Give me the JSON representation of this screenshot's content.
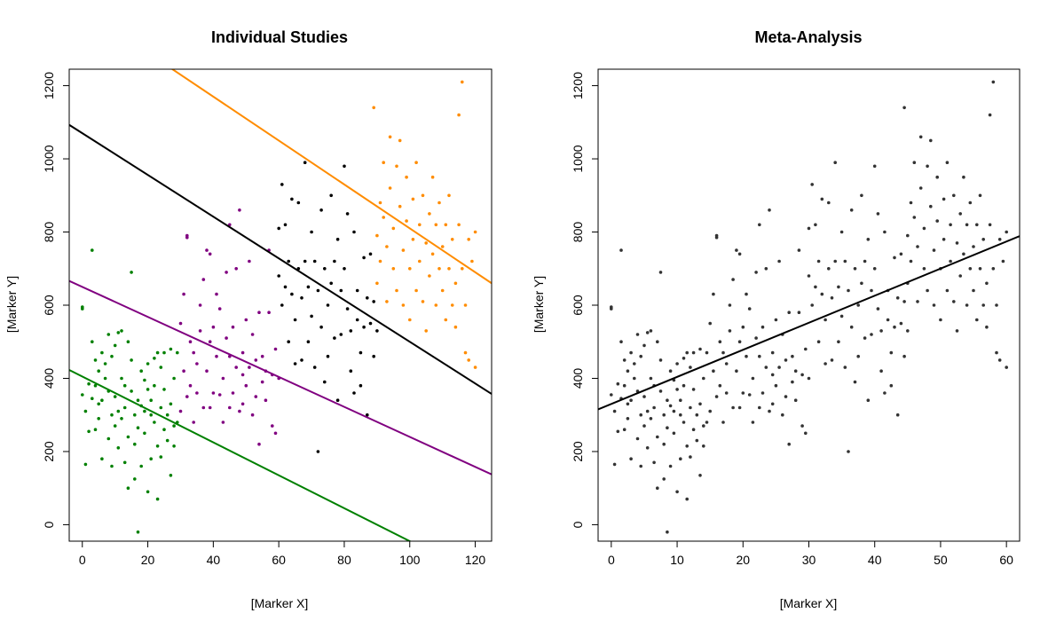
{
  "chart_data": [
    {
      "type": "scatter",
      "title": "Individual Studies",
      "xlabel": "[Marker X]",
      "ylabel": "[Marker Y]",
      "xlim": [
        -4,
        125
      ],
      "ylim": [
        -45,
        1245
      ],
      "xticks": [
        0,
        20,
        40,
        60,
        80,
        100,
        120
      ],
      "yticks": [
        0,
        200,
        400,
        600,
        800,
        1000,
        1200
      ],
      "grid": false,
      "legend": "none",
      "series": [
        {
          "color": "#008000",
          "fit": {
            "intercept": 405,
            "slope": -4.5
          },
          "points": [
            [
              0,
              355
            ],
            [
              0,
              595
            ],
            [
              0,
              590
            ],
            [
              1,
              165
            ],
            [
              1,
              310
            ],
            [
              2,
              255
            ],
            [
              2,
              385
            ],
            [
              3,
              345
            ],
            [
              3,
              750
            ],
            [
              3,
              500
            ],
            [
              4,
              450
            ],
            [
              4,
              260
            ],
            [
              4,
              380
            ],
            [
              5,
              330
            ],
            [
              5,
              290
            ],
            [
              5,
              420
            ],
            [
              6,
              340
            ],
            [
              6,
              180
            ],
            [
              6,
              470
            ],
            [
              7,
              400
            ],
            [
              7,
              440
            ],
            [
              8,
              365
            ],
            [
              8,
              520
            ],
            [
              8,
              235
            ],
            [
              9,
              300
            ],
            [
              9,
              460
            ],
            [
              9,
              160
            ],
            [
              10,
              350
            ],
            [
              10,
              490
            ],
            [
              10,
              270
            ],
            [
              11,
              525
            ],
            [
              11,
              210
            ],
            [
              11,
              310
            ],
            [
              12,
              400
            ],
            [
              12,
              530
            ],
            [
              12,
              290
            ],
            [
              13,
              380
            ],
            [
              13,
              320
            ],
            [
              13,
              170
            ],
            [
              14,
              240
            ],
            [
              14,
              100
            ],
            [
              14,
              500
            ],
            [
              15,
              365
            ],
            [
              15,
              450
            ],
            [
              15,
              690
            ],
            [
              16,
              300
            ],
            [
              16,
              220
            ],
            [
              16,
              125
            ],
            [
              17,
              340
            ],
            [
              17,
              265
            ],
            [
              17,
              -20
            ],
            [
              18,
              325
            ],
            [
              18,
              420
            ],
            [
              18,
              160
            ],
            [
              19,
              250
            ],
            [
              19,
              310
            ],
            [
              19,
              395
            ],
            [
              20,
              370
            ],
            [
              20,
              90
            ],
            [
              20,
              440
            ],
            [
              21,
              300
            ],
            [
              21,
              340
            ],
            [
              21,
              180
            ],
            [
              22,
              380
            ],
            [
              22,
              280
            ],
            [
              22,
              455
            ],
            [
              23,
              215
            ],
            [
              23,
              70
            ],
            [
              23,
              470
            ],
            [
              24,
              320
            ],
            [
              24,
              430
            ],
            [
              24,
              185
            ],
            [
              25,
              260
            ],
            [
              25,
              370
            ],
            [
              25,
              470
            ],
            [
              26,
              300
            ],
            [
              26,
              230
            ],
            [
              27,
              480
            ],
            [
              27,
              135
            ],
            [
              27,
              330
            ],
            [
              28,
              270
            ],
            [
              28,
              400
            ],
            [
              28,
              215
            ],
            [
              29,
              470
            ],
            [
              29,
              280
            ]
          ]
        },
        {
          "color": "#800080",
          "fit": {
            "intercept": 650,
            "slope": -4.1
          },
          "points": [
            [
              30,
              310
            ],
            [
              30,
              550
            ],
            [
              31,
              420
            ],
            [
              31,
              630
            ],
            [
              32,
              790
            ],
            [
              32,
              785
            ],
            [
              32,
              350
            ],
            [
              33,
              500
            ],
            [
              33,
              380
            ],
            [
              34,
              280
            ],
            [
              34,
              470
            ],
            [
              35,
              440
            ],
            [
              35,
              360
            ],
            [
              36,
              600
            ],
            [
              36,
              530
            ],
            [
              37,
              320
            ],
            [
              37,
              670
            ],
            [
              38,
              750
            ],
            [
              38,
              420
            ],
            [
              39,
              500
            ],
            [
              39,
              740
            ],
            [
              39,
              320
            ],
            [
              40,
              540
            ],
            [
              40,
              360
            ],
            [
              41,
              630
            ],
            [
              41,
              460
            ],
            [
              42,
              355
            ],
            [
              42,
              590
            ],
            [
              43,
              400
            ],
            [
              43,
              280
            ],
            [
              44,
              510
            ],
            [
              44,
              690
            ],
            [
              45,
              460
            ],
            [
              45,
              320
            ],
            [
              45,
              820
            ],
            [
              46,
              360
            ],
            [
              46,
              540
            ],
            [
              47,
              430
            ],
            [
              47,
              700
            ],
            [
              48,
              860
            ],
            [
              48,
              310
            ],
            [
              49,
              410
            ],
            [
              49,
              470
            ],
            [
              49,
              330
            ],
            [
              50,
              560
            ],
            [
              50,
              380
            ],
            [
              51,
              720
            ],
            [
              51,
              430
            ],
            [
              52,
              300
            ],
            [
              52,
              520
            ],
            [
              53,
              350
            ],
            [
              53,
              450
            ],
            [
              54,
              580
            ],
            [
              54,
              220
            ],
            [
              55,
              390
            ],
            [
              55,
              460
            ],
            [
              56,
              420
            ],
            [
              56,
              340
            ],
            [
              57,
              580
            ],
            [
              57,
              750
            ],
            [
              58,
              410
            ],
            [
              58,
              270
            ],
            [
              59,
              480
            ],
            [
              59,
              250
            ],
            [
              60,
              400
            ]
          ]
        },
        {
          "color": "#000000",
          "fit": {
            "intercept": 1070,
            "slope": -5.7
          },
          "points": [
            [
              60,
              810
            ],
            [
              60,
              680
            ],
            [
              61,
              930
            ],
            [
              61,
              600
            ],
            [
              62,
              820
            ],
            [
              62,
              650
            ],
            [
              63,
              500
            ],
            [
              63,
              720
            ],
            [
              64,
              890
            ],
            [
              64,
              630
            ],
            [
              65,
              560
            ],
            [
              65,
              440
            ],
            [
              66,
              880
            ],
            [
              66,
              700
            ],
            [
              67,
              620
            ],
            [
              67,
              450
            ],
            [
              68,
              720
            ],
            [
              68,
              990
            ],
            [
              69,
              650
            ],
            [
              69,
              500
            ],
            [
              70,
              800
            ],
            [
              70,
              570
            ],
            [
              71,
              720
            ],
            [
              71,
              430
            ],
            [
              72,
              640
            ],
            [
              72,
              200
            ],
            [
              73,
              860
            ],
            [
              73,
              540
            ],
            [
              74,
              700
            ],
            [
              74,
              390
            ],
            [
              75,
              600
            ],
            [
              75,
              460
            ],
            [
              76,
              900
            ],
            [
              76,
              660
            ],
            [
              77,
              720
            ],
            [
              77,
              510
            ],
            [
              78,
              780
            ],
            [
              78,
              340
            ],
            [
              79,
              640
            ],
            [
              79,
              520
            ],
            [
              80,
              980
            ],
            [
              80,
              700
            ],
            [
              81,
              850
            ],
            [
              81,
              590
            ],
            [
              82,
              530
            ],
            [
              82,
              420
            ],
            [
              83,
              800
            ],
            [
              83,
              360
            ],
            [
              84,
              640
            ],
            [
              84,
              560
            ],
            [
              85,
              470
            ],
            [
              85,
              380
            ],
            [
              86,
              730
            ],
            [
              86,
              540
            ],
            [
              87,
              300
            ],
            [
              87,
              620
            ],
            [
              88,
              550
            ],
            [
              88,
              740
            ],
            [
              89,
              460
            ],
            [
              89,
              610
            ],
            [
              90,
              530
            ]
          ]
        },
        {
          "color": "#ff8c00",
          "fit": {
            "intercept": 1410,
            "slope": -6.0
          },
          "points": [
            [
              89,
              1140
            ],
            [
              90,
              790
            ],
            [
              90,
              660
            ],
            [
              91,
              880
            ],
            [
              91,
              720
            ],
            [
              92,
              990
            ],
            [
              92,
              840
            ],
            [
              93,
              610
            ],
            [
              93,
              760
            ],
            [
              94,
              1060
            ],
            [
              94,
              920
            ],
            [
              95,
              700
            ],
            [
              95,
              810
            ],
            [
              96,
              980
            ],
            [
              96,
              640
            ],
            [
              97,
              1050
            ],
            [
              97,
              870
            ],
            [
              98,
              750
            ],
            [
              98,
              600
            ],
            [
              99,
              950
            ],
            [
              99,
              830
            ],
            [
              100,
              700
            ],
            [
              100,
              560
            ],
            [
              101,
              890
            ],
            [
              101,
              780
            ],
            [
              102,
              640
            ],
            [
              102,
              990
            ],
            [
              103,
              820
            ],
            [
              103,
              720
            ],
            [
              104,
              900
            ],
            [
              104,
              610
            ],
            [
              105,
              770
            ],
            [
              105,
              530
            ],
            [
              106,
              850
            ],
            [
              106,
              680
            ],
            [
              107,
              950
            ],
            [
              107,
              740
            ],
            [
              108,
              820
            ],
            [
              108,
              600
            ],
            [
              109,
              700
            ],
            [
              109,
              880
            ],
            [
              110,
              760
            ],
            [
              110,
              640
            ],
            [
              111,
              560
            ],
            [
              111,
              820
            ],
            [
              112,
              900
            ],
            [
              112,
              700
            ],
            [
              113,
              600
            ],
            [
              113,
              780
            ],
            [
              114,
              660
            ],
            [
              114,
              540
            ],
            [
              115,
              1120
            ],
            [
              115,
              820
            ],
            [
              116,
              1210
            ],
            [
              116,
              700
            ],
            [
              117,
              470
            ],
            [
              117,
              600
            ],
            [
              118,
              780
            ],
            [
              118,
              450
            ],
            [
              119,
              720
            ],
            [
              120,
              800
            ],
            [
              120,
              430
            ]
          ]
        }
      ]
    },
    {
      "type": "scatter",
      "title": "Meta-Analysis",
      "xlabel": "[Marker X]",
      "ylabel": "[Marker Y]",
      "xlim": [
        -2,
        62
      ],
      "ylim": [
        -45,
        1245
      ],
      "xticks": [
        0,
        10,
        20,
        30,
        40,
        50,
        60
      ],
      "yticks": [
        0,
        200,
        400,
        600,
        800,
        1000,
        1200
      ],
      "grid": false,
      "legend": "none",
      "series": [
        {
          "color": "#000000",
          "fit": {
            "intercept": 330,
            "slope": 7.4
          }
        }
      ]
    }
  ]
}
